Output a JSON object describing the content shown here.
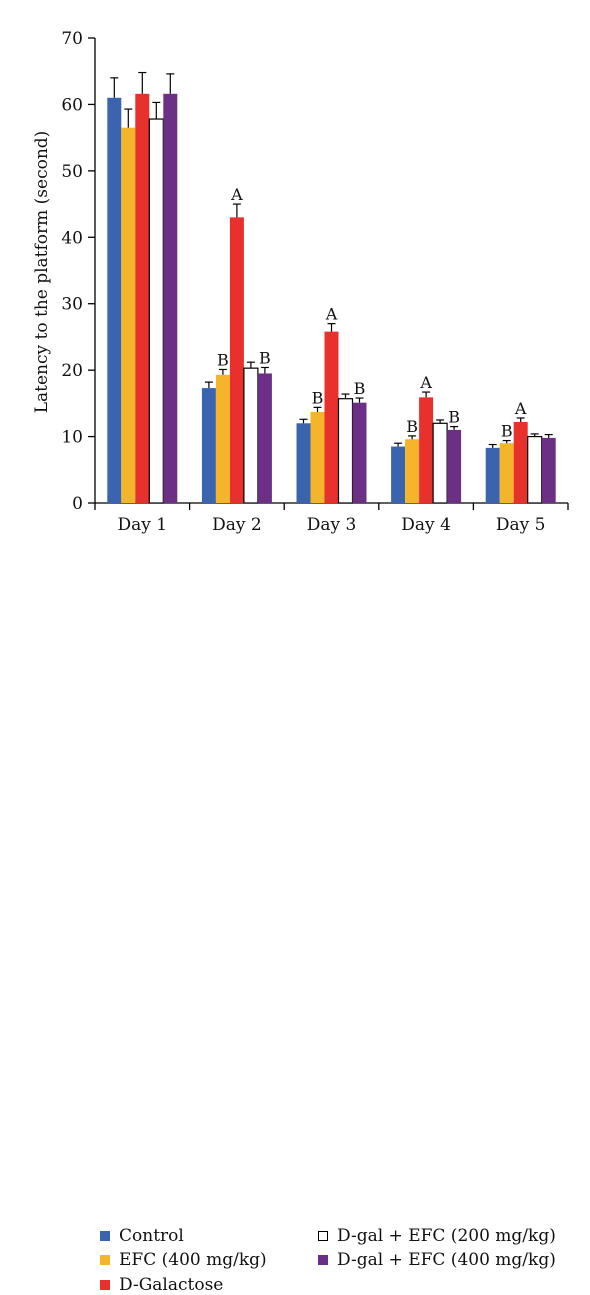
{
  "chart_data": {
    "type": "bar",
    "title": "",
    "xlabel": "",
    "ylabel": "Latency to the platform (second)",
    "ylim": [
      0,
      70
    ],
    "yticks": [
      0,
      10,
      20,
      30,
      40,
      50,
      60,
      70
    ],
    "grid": false,
    "legend_position": "bottom",
    "categories": [
      "Day 1",
      "Day 2",
      "Day 3",
      "Day 4",
      "Day 5"
    ],
    "series": [
      {
        "name": "Control",
        "color": "#3a64ae",
        "values": [
          61.0,
          17.3,
          12.0,
          8.5,
          8.3
        ],
        "errors": [
          3.0,
          0.9,
          0.6,
          0.5,
          0.5
        ],
        "labels": [
          "",
          "",
          "",
          "",
          ""
        ]
      },
      {
        "name": "EFC (400 mg/kg)",
        "color": "#f5b52a",
        "values": [
          56.5,
          19.3,
          13.7,
          9.6,
          9.0
        ],
        "errors": [
          2.8,
          0.8,
          0.7,
          0.5,
          0.4
        ],
        "labels": [
          "",
          "B",
          "B",
          "B",
          "B"
        ]
      },
      {
        "name": "D-Galactose",
        "color": "#e8302c",
        "values": [
          61.6,
          43.0,
          25.8,
          15.9,
          12.2
        ],
        "errors": [
          3.2,
          2.0,
          1.2,
          0.8,
          0.6
        ],
        "labels": [
          "",
          "A",
          "A",
          "A",
          "A"
        ]
      },
      {
        "name": "D-gal + EFC (200 mg/kg)",
        "color": "#ffffff",
        "values": [
          57.8,
          20.3,
          15.7,
          12.0,
          10.0
        ],
        "errors": [
          2.5,
          0.9,
          0.7,
          0.5,
          0.4
        ],
        "labels": [
          "",
          "",
          "",
          "",
          ""
        ]
      },
      {
        "name": "D-gal + EFC (400 mg/kg)",
        "color": "#6b2f86",
        "values": [
          61.6,
          19.5,
          15.1,
          11.0,
          9.8
        ],
        "errors": [
          3.0,
          0.9,
          0.7,
          0.5,
          0.5
        ],
        "labels": [
          "",
          "B",
          "B",
          "B",
          ""
        ]
      }
    ]
  }
}
